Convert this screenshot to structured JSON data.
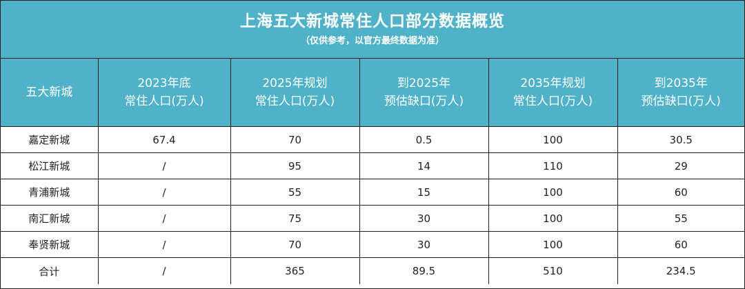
{
  "title": "上海五大新城常住人口部分数据概览",
  "subtitle": "（仅供参考，以官方最终数据为准）",
  "headers": [
    {
      "line1": "五大新城",
      "line2": ""
    },
    {
      "line1": "2023年底",
      "line2": "常住人口(万人)"
    },
    {
      "line1": "2025年规划",
      "line2": "常住人口(万人)"
    },
    {
      "line1": "到2025年",
      "line2": "预估缺口(万人)"
    },
    {
      "line1": "2035年规划",
      "line2": "常住人口(万人)"
    },
    {
      "line1": "到2035年",
      "line2": "预估缺口(万人)"
    }
  ],
  "rows": [
    [
      "嘉定新城",
      "67.4",
      "70",
      "0.5",
      "100",
      "30.5"
    ],
    [
      "松江新城",
      "/",
      "95",
      "14",
      "110",
      "29"
    ],
    [
      "青浦新城",
      "/",
      "55",
      "15",
      "100",
      "60"
    ],
    [
      "南汇新城",
      "/",
      "75",
      "30",
      "100",
      "55"
    ],
    [
      "奉贤新城",
      "/",
      "70",
      "30",
      "100",
      "60"
    ],
    [
      "合计",
      "/",
      "365",
      "89.5",
      "510",
      "234.5"
    ]
  ],
  "colors": {
    "header_bg": "#4fb2c8",
    "header_text": "#ffffff",
    "grid": "#1e1e1e",
    "cell_text": "#222222"
  }
}
